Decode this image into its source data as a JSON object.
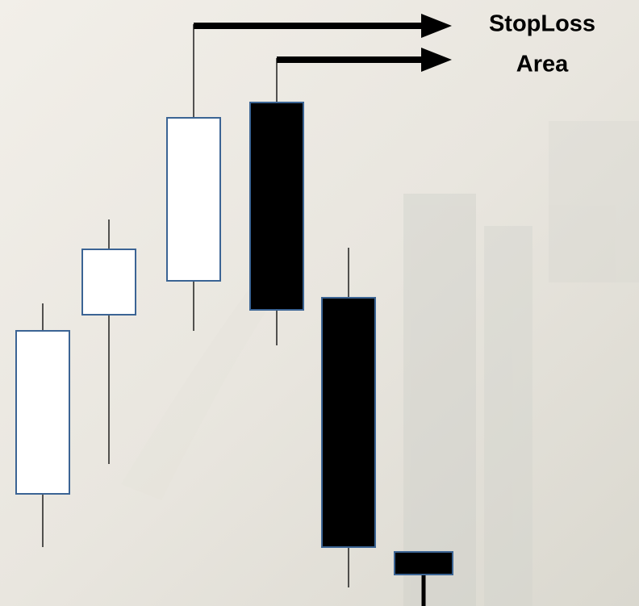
{
  "label": {
    "line1": "StopLoss",
    "line2": "Area"
  }
}
